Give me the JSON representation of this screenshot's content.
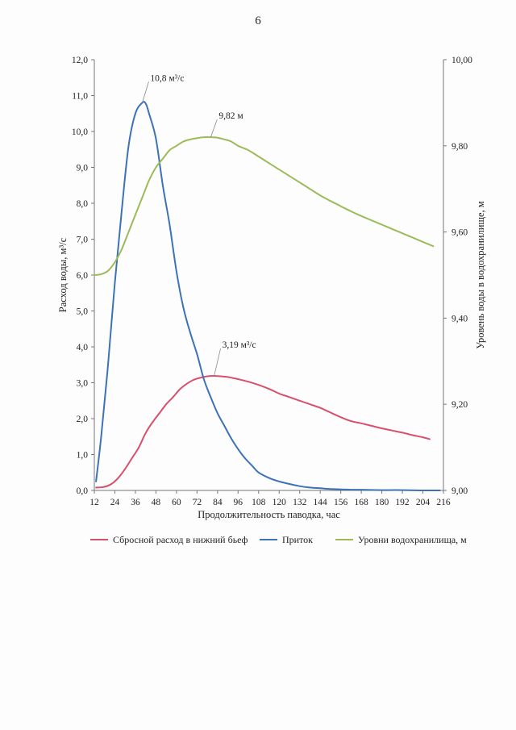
{
  "page": {
    "number": "6"
  },
  "chart_data": {
    "type": "line",
    "xlabel": "Продолжительность паводка, час",
    "ylabel_left": "Расход воды, м³/с",
    "ylabel_right": "Уровень воды в водохранилище, м",
    "x_ticks": [
      "12",
      "24",
      "36",
      "48",
      "60",
      "72",
      "84",
      "96",
      "108",
      "120",
      "132",
      "144",
      "156",
      "168",
      "180",
      "192",
      "204",
      "216"
    ],
    "xlim": [
      12,
      216
    ],
    "ylim_left": [
      0,
      12
    ],
    "y_left_ticks": [
      "0,0",
      "1,0",
      "2,0",
      "3,0",
      "4,0",
      "5,0",
      "6,0",
      "7,0",
      "8,0",
      "9,0",
      "10,0",
      "11,0",
      "12,0"
    ],
    "ylim_right": [
      9.0,
      10.0
    ],
    "y_right_ticks": [
      "9,00",
      "9,20",
      "9,40",
      "9,60",
      "9,80",
      "10,00"
    ],
    "grid": false,
    "legend_position": "bottom",
    "series": [
      {
        "name": "Сбросной расход в нижний бьеф",
        "axis": "left",
        "color": "#d8506b",
        "x": [
          13,
          18,
          22,
          26,
          30,
          34,
          38,
          42,
          46,
          50,
          54,
          58,
          62,
          66,
          70,
          74,
          78,
          82,
          86,
          90,
          96,
          102,
          108,
          114,
          120,
          126,
          132,
          138,
          144,
          150,
          156,
          162,
          168,
          174,
          180,
          186,
          192,
          198,
          204,
          208
        ],
        "y": [
          0.08,
          0.1,
          0.18,
          0.35,
          0.6,
          0.9,
          1.2,
          1.6,
          1.9,
          2.15,
          2.4,
          2.6,
          2.82,
          2.97,
          3.08,
          3.14,
          3.18,
          3.19,
          3.18,
          3.16,
          3.1,
          3.03,
          2.94,
          2.83,
          2.7,
          2.6,
          2.5,
          2.4,
          2.3,
          2.17,
          2.04,
          1.93,
          1.87,
          1.8,
          1.73,
          1.67,
          1.61,
          1.54,
          1.48,
          1.43
        ]
      },
      {
        "name": "Приток",
        "axis": "left",
        "color": "#3d72b8",
        "x": [
          13,
          16,
          20,
          24,
          28,
          32,
          36,
          40,
          42,
          44,
          48,
          52,
          56,
          60,
          64,
          68,
          72,
          76,
          80,
          84,
          88,
          92,
          96,
          100,
          104,
          108,
          114,
          120,
          126,
          132,
          138,
          144,
          150,
          156,
          162,
          168,
          180,
          192,
          204,
          214
        ],
        "y": [
          0.25,
          1.5,
          3.5,
          5.8,
          7.8,
          9.6,
          10.5,
          10.8,
          10.78,
          10.5,
          9.8,
          8.5,
          7.4,
          6.1,
          5.1,
          4.4,
          3.8,
          3.1,
          2.6,
          2.15,
          1.8,
          1.45,
          1.15,
          0.9,
          0.7,
          0.5,
          0.35,
          0.25,
          0.18,
          0.12,
          0.08,
          0.06,
          0.04,
          0.03,
          0.02,
          0.02,
          0.01,
          0.01,
          0.0,
          0.0
        ]
      },
      {
        "name": "Уровни водохранилища, м",
        "axis": "right",
        "color": "#9bbb59",
        "x": [
          12,
          16,
          20,
          24,
          28,
          32,
          36,
          40,
          44,
          48,
          52,
          56,
          60,
          64,
          68,
          72,
          76,
          80,
          84,
          88,
          92,
          96,
          102,
          108,
          114,
          120,
          126,
          132,
          138,
          144,
          150,
          156,
          162,
          168,
          174,
          180,
          186,
          192,
          198,
          204,
          210
        ],
        "y": [
          9.5,
          9.502,
          9.51,
          9.53,
          9.56,
          9.6,
          9.64,
          9.68,
          9.72,
          9.75,
          9.77,
          9.79,
          9.8,
          9.81,
          9.815,
          9.818,
          9.82,
          9.82,
          9.819,
          9.815,
          9.81,
          9.8,
          9.79,
          9.775,
          9.76,
          9.745,
          9.73,
          9.715,
          9.7,
          9.685,
          9.672,
          9.66,
          9.648,
          9.637,
          9.627,
          9.617,
          9.607,
          9.597,
          9.587,
          9.577,
          9.567
        ]
      }
    ],
    "annotations": [
      {
        "text": "10,8 м³/с",
        "series": 1,
        "x": 40,
        "y": 10.8
      },
      {
        "text": "9,82 м",
        "series": 2,
        "x": 80,
        "y": 9.82
      },
      {
        "text": "3,19 м³/с",
        "series": 0,
        "x": 82,
        "y": 3.19
      }
    ]
  }
}
